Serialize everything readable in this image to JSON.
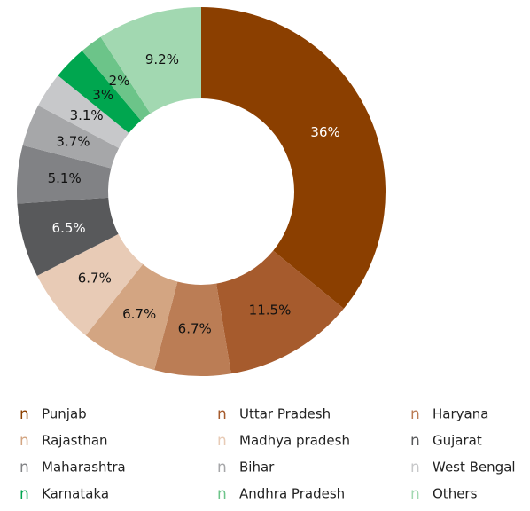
{
  "chart_data": {
    "type": "donut",
    "categories": [
      "Punjab",
      "Uttar Pradesh",
      "Haryana",
      "Rajasthan",
      "Madhya pradesh",
      "Gujarat",
      "Maharashtra",
      "Bihar",
      "West Bengal",
      "Karnataka",
      "Andhra Pradesh",
      "Others"
    ],
    "values": [
      36,
      11.5,
      6.7,
      6.7,
      6.7,
      6.5,
      5.1,
      3.7,
      3.1,
      3,
      2,
      9.2
    ],
    "value_labels": [
      "36%",
      "11.5%",
      "6.7%",
      "6.7%",
      "6.7%",
      "6.5%",
      "5.1%",
      "3.7%",
      "3.1%",
      "3%",
      "2%",
      "9.2%"
    ],
    "colors": [
      "#8b3f00",
      "#a65b2d",
      "#bb7d55",
      "#d3a582",
      "#e8cbb6",
      "#58595b",
      "#818285",
      "#a6a7a9",
      "#c7c8ca",
      "#00a64f",
      "#6cc489",
      "#a2d8b1"
    ],
    "legend_marker": "n",
    "legend": "bottom"
  }
}
